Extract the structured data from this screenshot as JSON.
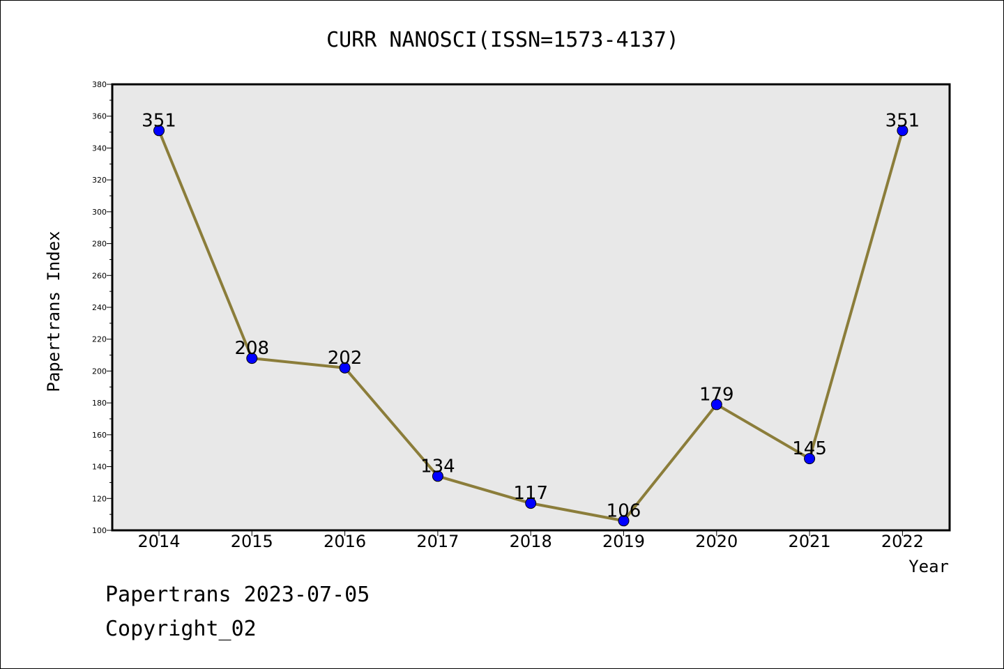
{
  "chart_data": {
    "type": "line",
    "title": "CURR NANOSCI(ISSN=1573-4137)",
    "xlabel": "Year",
    "ylabel": "Papertrans Index",
    "categories": [
      "2014",
      "2015",
      "2016",
      "2017",
      "2018",
      "2019",
      "2020",
      "2021",
      "2022"
    ],
    "series": [
      {
        "values": [
          351,
          208,
          202,
          134,
          117,
          106,
          179,
          145,
          351
        ]
      }
    ],
    "data_labels": [
      "351",
      "208",
      "202",
      "134",
      "117",
      "106",
      "179",
      "145",
      "351"
    ],
    "ylim": [
      100,
      380
    ],
    "yticks": [
      100,
      120,
      140,
      160,
      180,
      200,
      220,
      240,
      260,
      280,
      300,
      320,
      340,
      360,
      380
    ],
    "grid": false,
    "legend": "none",
    "line_color": "#8b7d3a",
    "marker_color": "#0000ff",
    "plot_background": "#e8e8e8"
  },
  "footer": {
    "line1": "Papertrans 2023-07-05",
    "line2": "Copyright_02"
  }
}
